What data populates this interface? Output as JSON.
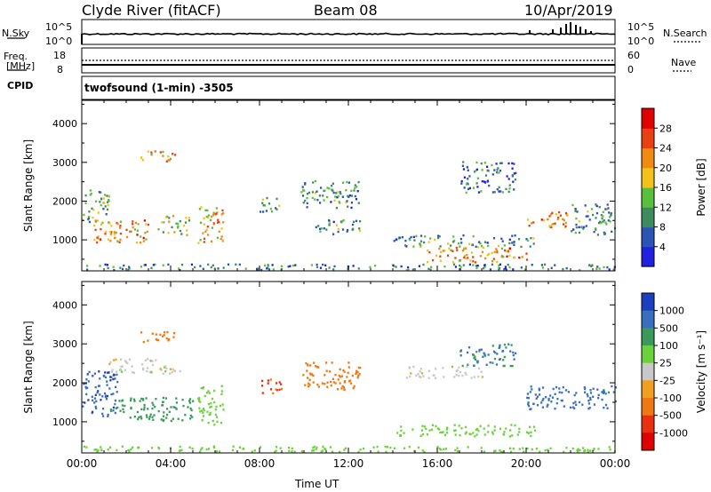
{
  "header": {
    "station": "Clyde River (fitACF)",
    "beam": "Beam 08",
    "date": "10/Apr/2019"
  },
  "summary": {
    "nsky_label": "N.Sky",
    "nsky_ticks": [
      "10^5",
      "10^0"
    ],
    "nsearch_label": "N.Search",
    "freq_label_1": "Freq.",
    "freq_label_2": "[MHz]",
    "freq_ticks": [
      "18",
      "8"
    ],
    "nave_label": "Nave",
    "nave_ticks": [
      "60",
      "0"
    ],
    "cpid_label": "CPID",
    "cpid_text": "twofsound (1-min) -3505"
  },
  "colors": {
    "power": [
      "#2020e0",
      "#2a55b4",
      "#3e8c5e",
      "#5abf3c",
      "#f2c21a",
      "#f08a10",
      "#e84010",
      "#e00000"
    ],
    "velocity": [
      "#1a3fbf",
      "#3a6fbf",
      "#3a9a5a",
      "#6cd23c",
      "#c8c8c8",
      "#f0a020",
      "#f07810",
      "#e83010",
      "#e00000"
    ]
  },
  "chart_data": [
    {
      "type": "heatmap",
      "panel": "power",
      "ylabel": "Slant Range [km]",
      "x_ticks": [
        "00:00",
        "04:00",
        "08:00",
        "12:00",
        "16:00",
        "20:00",
        "00:00"
      ],
      "y_ticks": [
        1000,
        2000,
        3000,
        4000
      ],
      "ylim": [
        200,
        4600
      ],
      "colorbar_label": "Power [dB]",
      "colorbar_ticks": [
        "4",
        "8",
        "12",
        "16",
        "20",
        "24",
        "28"
      ],
      "colorbar_range": [
        0,
        32
      ],
      "echo_regions": [
        {
          "t0": 0.0,
          "t1": 1.2,
          "r0": 1400,
          "r1": 2300,
          "value": 12
        },
        {
          "t0": 0.5,
          "t1": 3.0,
          "r0": 900,
          "r1": 1500,
          "value": 22
        },
        {
          "t0": 2.6,
          "t1": 4.2,
          "r0": 3000,
          "r1": 3300,
          "value": 20
        },
        {
          "t0": 3.4,
          "t1": 4.8,
          "r0": 1100,
          "r1": 1600,
          "value": 14
        },
        {
          "t0": 5.2,
          "t1": 6.4,
          "r0": 900,
          "r1": 1900,
          "value": 20
        },
        {
          "t0": 8.0,
          "t1": 9.0,
          "r0": 1700,
          "r1": 2100,
          "value": 12
        },
        {
          "t0": 9.8,
          "t1": 12.5,
          "r0": 1800,
          "r1": 2500,
          "value": 10
        },
        {
          "t0": 10.5,
          "t1": 12.6,
          "r0": 1100,
          "r1": 1500,
          "value": 10
        },
        {
          "t0": 14.0,
          "t1": 20.5,
          "r0": 800,
          "r1": 1100,
          "value": 10
        },
        {
          "t0": 15.5,
          "t1": 20.0,
          "r0": 400,
          "r1": 800,
          "value": 22
        },
        {
          "t0": 17.0,
          "t1": 19.5,
          "r0": 2200,
          "r1": 3000,
          "value": 8
        },
        {
          "t0": 20.0,
          "t1": 22.0,
          "r0": 1300,
          "r1": 1700,
          "value": 22
        },
        {
          "t0": 22.0,
          "t1": 24.0,
          "r0": 1100,
          "r1": 1900,
          "value": 10
        },
        {
          "t0": 0.0,
          "t1": 24.0,
          "r0": 200,
          "r1": 350,
          "value": 8
        }
      ]
    },
    {
      "type": "heatmap",
      "panel": "velocity",
      "ylabel": "Slant Range [km]",
      "xlabel": "Time UT",
      "x_ticks": [
        "00:00",
        "04:00",
        "08:00",
        "12:00",
        "16:00",
        "20:00",
        "00:00"
      ],
      "y_ticks": [
        1000,
        2000,
        3000,
        4000
      ],
      "ylim": [
        200,
        4600
      ],
      "colorbar_label": "Velocity [m s⁻¹]",
      "colorbar_ticks": [
        "1000",
        "500",
        "100",
        "25",
        "-25",
        "-100",
        "-500",
        "-1000"
      ],
      "echo_regions": [
        {
          "t0": 0.0,
          "t1": 1.6,
          "r0": 1100,
          "r1": 2300,
          "value": 900
        },
        {
          "t0": 1.2,
          "t1": 5.0,
          "r0": 1000,
          "r1": 1600,
          "value": 200
        },
        {
          "t0": 2.6,
          "t1": 4.2,
          "r0": 3000,
          "r1": 3300,
          "value": -150
        },
        {
          "t0": 1.2,
          "t1": 4.4,
          "r0": 2200,
          "r1": 2600,
          "value": 0
        },
        {
          "t0": 5.2,
          "t1": 6.4,
          "r0": 900,
          "r1": 1900,
          "value": 60
        },
        {
          "t0": 8.0,
          "t1": 9.0,
          "r0": 1700,
          "r1": 2100,
          "value": -600
        },
        {
          "t0": 9.8,
          "t1": 12.5,
          "r0": 1800,
          "r1": 2500,
          "value": -200
        },
        {
          "t0": 14.0,
          "t1": 20.5,
          "r0": 600,
          "r1": 900,
          "value": 60
        },
        {
          "t0": 14.5,
          "t1": 18.0,
          "r0": 2100,
          "r1": 2400,
          "value": 0
        },
        {
          "t0": 17.0,
          "t1": 19.5,
          "r0": 2400,
          "r1": 3000,
          "value": 500
        },
        {
          "t0": 20.0,
          "t1": 24.0,
          "r0": 1300,
          "r1": 1900,
          "value": 700
        },
        {
          "t0": 0.0,
          "t1": 24.0,
          "r0": 200,
          "r1": 350,
          "value": 60
        }
      ]
    }
  ]
}
